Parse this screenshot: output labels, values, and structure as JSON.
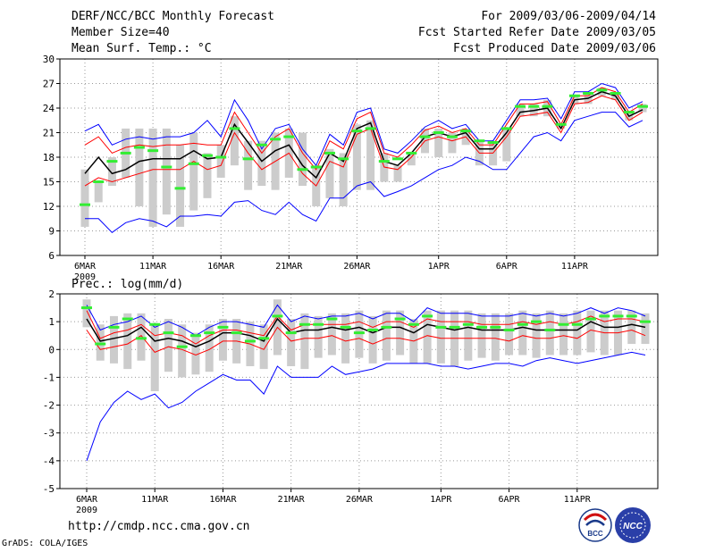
{
  "header": {
    "title": "DERF/NCC/BCC Monthly Forecast",
    "member_size": "Member Size=40",
    "variable": "Mean Surf. Temp.: °C",
    "period": "For 2009/03/06-2009/04/14",
    "refer_date": "Fcst Started Refer Date 2009/03/05",
    "produced_date": "Fcst Produced Date 2009/03/06"
  },
  "footer": {
    "url": "http://cmdp.ncc.cma.gov.cn",
    "credit": "GrADS: COLA/IGES"
  },
  "logos": {
    "bcc_text": "BCC",
    "ncc_text": "NCC"
  },
  "colors": {
    "envelope": "#0000ff",
    "spread": "#ff0000",
    "mean": "#000000",
    "median_marker": "#33ee33",
    "box": "#cccccc",
    "grid": "#999999"
  },
  "chart_data": [
    {
      "type": "line",
      "title": "Mean Surf. Temp.: °C",
      "x_tick_labels": [
        "6MAR",
        "11MAR",
        "16MAR",
        "21MAR",
        "26MAR",
        "1APR",
        "6APR",
        "11APR"
      ],
      "x_tick_days": [
        0,
        5,
        10,
        15,
        20,
        26,
        31,
        36
      ],
      "x_sublabel": "2009",
      "ylim": [
        6,
        30
      ],
      "yticks": [
        6,
        9,
        12,
        15,
        18,
        21,
        24,
        27,
        30
      ],
      "series": [
        {
          "name": "max",
          "values": [
            21.2,
            22.0,
            19.5,
            20.2,
            20.5,
            20.2,
            20.5,
            20.5,
            21.0,
            22.5,
            20.5,
            25.0,
            22.5,
            19.0,
            21.5,
            22.0,
            19.0,
            17.0,
            20.8,
            19.5,
            23.5,
            24.0,
            19.0,
            18.5,
            20.0,
            21.7,
            22.5,
            21.5,
            22.0,
            20.0,
            20.0,
            22.5,
            25.0,
            25.0,
            25.2,
            22.7,
            26.0,
            26.0,
            27.0,
            26.5,
            24.0,
            24.8
          ]
        },
        {
          "name": "upper_spread",
          "values": [
            19.5,
            20.5,
            18.5,
            19.2,
            19.5,
            19.3,
            19.5,
            19.5,
            19.7,
            19.5,
            19.5,
            23.5,
            21.0,
            18.5,
            20.5,
            21.5,
            18.5,
            16.5,
            20.0,
            19.0,
            22.7,
            23.5,
            18.5,
            18.0,
            19.5,
            21.3,
            21.8,
            21.0,
            21.5,
            19.5,
            19.5,
            22.0,
            24.5,
            24.5,
            24.8,
            22.0,
            25.5,
            25.5,
            26.5,
            26.0,
            23.5,
            24.5
          ]
        },
        {
          "name": "mean",
          "values": [
            16.0,
            18.0,
            16.0,
            16.5,
            17.5,
            17.8,
            17.8,
            17.8,
            18.8,
            17.8,
            18.0,
            22.0,
            19.8,
            17.5,
            18.8,
            19.5,
            17.0,
            15.5,
            18.5,
            17.5,
            21.5,
            22.2,
            17.5,
            17.0,
            18.5,
            20.5,
            21.0,
            20.5,
            21.0,
            19.0,
            19.0,
            21.0,
            23.5,
            23.7,
            24.0,
            21.5,
            25.0,
            25.2,
            26.0,
            25.5,
            23.0,
            23.8
          ]
        },
        {
          "name": "lower_spread",
          "values": [
            14.5,
            15.5,
            15.0,
            15.5,
            16.0,
            16.5,
            16.5,
            16.5,
            17.5,
            16.5,
            17.0,
            21.0,
            18.5,
            16.5,
            17.5,
            18.5,
            16.0,
            14.5,
            17.5,
            16.8,
            20.8,
            21.5,
            16.8,
            16.5,
            18.0,
            20.0,
            20.5,
            20.0,
            20.5,
            18.5,
            18.5,
            20.5,
            23.0,
            23.2,
            23.5,
            21.0,
            24.5,
            24.7,
            25.5,
            25.0,
            22.5,
            23.5
          ]
        },
        {
          "name": "min",
          "values": [
            10.5,
            10.5,
            8.8,
            10.0,
            10.5,
            10.2,
            9.5,
            10.8,
            10.8,
            11.0,
            10.8,
            12.5,
            12.7,
            11.5,
            11.0,
            12.5,
            11.0,
            10.2,
            13.0,
            13.0,
            14.5,
            15.0,
            13.2,
            13.8,
            14.5,
            15.5,
            16.5,
            17.0,
            18.0,
            17.5,
            16.5,
            16.5,
            18.5,
            20.5,
            21.0,
            20.0,
            22.5,
            23.0,
            23.5,
            23.5,
            21.7,
            22.5
          ]
        },
        {
          "name": "box_top",
          "values": [
            16.5,
            15.0,
            18.0,
            21.5,
            21.5,
            21.5,
            21.5,
            19.5,
            21.0,
            18.5,
            19.5,
            23.0,
            20.0,
            20.0,
            21.0,
            21.5,
            21.0,
            17.0,
            19.0,
            18.5,
            22.0,
            22.5,
            18.5,
            17.0,
            18.5,
            21.5,
            21.5,
            21.0,
            21.5,
            20.0,
            20.0,
            21.5,
            24.5,
            24.5,
            25.0,
            22.0,
            25.5,
            26.0,
            26.5,
            26.0,
            23.5,
            24.5
          ]
        },
        {
          "name": "box_bottom",
          "values": [
            9.5,
            12.5,
            14.5,
            15.5,
            12.0,
            9.5,
            11.0,
            9.5,
            11.5,
            13.0,
            15.5,
            17.0,
            14.0,
            14.5,
            14.0,
            15.5,
            14.5,
            12.0,
            13.0,
            12.0,
            14.0,
            14.0,
            15.0,
            15.0,
            17.0,
            18.5,
            18.0,
            18.5,
            19.5,
            17.0,
            17.0,
            17.5,
            23.0,
            23.0,
            23.0,
            21.5,
            24.5,
            24.5,
            25.5,
            25.0,
            22.5,
            23.5
          ]
        },
        {
          "name": "median",
          "values": [
            12.2,
            15.0,
            17.5,
            18.5,
            19.2,
            18.8,
            16.8,
            14.2,
            17.2,
            18.2,
            18.0,
            21.5,
            17.8,
            19.5,
            20.2,
            20.5,
            16.5,
            16.8,
            18.5,
            17.8,
            21.2,
            21.5,
            17.5,
            17.8,
            18.5,
            20.5,
            21.0,
            20.5,
            21.2,
            20.0,
            19.8,
            21.5,
            24.2,
            24.2,
            24.2,
            22.0,
            25.5,
            25.8,
            26.2,
            25.8,
            23.5,
            24.2
          ]
        }
      ]
    },
    {
      "type": "line",
      "title": "Prec.: log(mm/d)",
      "x_tick_labels": [
        "6MAR",
        "11MAR",
        "16MAR",
        "21MAR",
        "26MAR",
        "1APR",
        "6APR",
        "11APR"
      ],
      "x_tick_days": [
        0,
        5,
        10,
        15,
        20,
        26,
        31,
        36
      ],
      "x_sublabel": "2009",
      "ylim": [
        -5,
        2
      ],
      "yticks": [
        -5,
        -4,
        -3,
        -2,
        -1,
        0,
        1,
        2
      ],
      "series": [
        {
          "name": "max",
          "values": [
            1.6,
            0.7,
            0.9,
            1.0,
            1.2,
            0.8,
            1.0,
            0.8,
            0.5,
            0.8,
            1.0,
            1.0,
            0.9,
            0.8,
            1.6,
            1.0,
            1.2,
            1.1,
            1.2,
            1.2,
            1.3,
            1.1,
            1.3,
            1.3,
            1.0,
            1.5,
            1.3,
            1.3,
            1.3,
            1.2,
            1.2,
            1.2,
            1.3,
            1.2,
            1.3,
            1.2,
            1.3,
            1.5,
            1.3,
            1.5,
            1.4,
            1.2
          ]
        },
        {
          "name": "upper_spread",
          "values": [
            1.4,
            0.4,
            0.6,
            0.7,
            0.9,
            0.5,
            0.6,
            0.5,
            0.2,
            0.5,
            0.7,
            0.7,
            0.6,
            0.5,
            1.2,
            0.7,
            0.9,
            0.9,
            0.9,
            0.9,
            1.0,
            0.8,
            1.0,
            1.0,
            0.8,
            1.1,
            1.0,
            1.0,
            1.0,
            0.9,
            0.9,
            0.9,
            1.0,
            0.9,
            1.0,
            0.9,
            1.0,
            1.2,
            1.0,
            1.1,
            1.1,
            1.0
          ]
        },
        {
          "name": "mean",
          "values": [
            1.1,
            0.3,
            0.4,
            0.5,
            0.8,
            0.3,
            0.4,
            0.3,
            0.1,
            0.3,
            0.6,
            0.6,
            0.5,
            0.3,
            1.1,
            0.6,
            0.7,
            0.7,
            0.8,
            0.7,
            0.8,
            0.6,
            0.8,
            0.8,
            0.6,
            0.9,
            0.8,
            0.7,
            0.8,
            0.7,
            0.7,
            0.7,
            0.8,
            0.7,
            0.7,
            0.7,
            0.7,
            1.0,
            0.8,
            0.8,
            0.9,
            0.8
          ]
        },
        {
          "name": "lower_spread",
          "values": [
            0.7,
            0.0,
            0.1,
            0.2,
            0.5,
            -0.1,
            0.1,
            0.0,
            -0.2,
            0.0,
            0.3,
            0.3,
            0.2,
            0.0,
            0.8,
            0.3,
            0.4,
            0.4,
            0.5,
            0.3,
            0.4,
            0.2,
            0.4,
            0.4,
            0.3,
            0.5,
            0.4,
            0.4,
            0.4,
            0.4,
            0.4,
            0.3,
            0.5,
            0.4,
            0.4,
            0.5,
            0.4,
            0.7,
            0.6,
            0.6,
            0.7,
            0.5
          ]
        },
        {
          "name": "min",
          "values": [
            -4.0,
            -2.6,
            -1.9,
            -1.5,
            -1.8,
            -1.6,
            -2.1,
            -1.9,
            -1.5,
            -1.2,
            -0.9,
            -1.1,
            -1.1,
            -1.6,
            -0.6,
            -1.0,
            -1.0,
            -1.0,
            -0.6,
            -0.9,
            -0.8,
            -0.7,
            -0.5,
            -0.5,
            -0.5,
            -0.5,
            -0.6,
            -0.6,
            -0.7,
            -0.6,
            -0.5,
            -0.5,
            -0.6,
            -0.4,
            -0.3,
            -0.4,
            -0.5,
            -0.4,
            -0.3,
            -0.2,
            -0.1,
            -0.2
          ]
        },
        {
          "name": "box_top",
          "values": [
            1.8,
            0.9,
            1.2,
            1.3,
            1.3,
            0.9,
            1.1,
            0.9,
            0.6,
            0.9,
            1.1,
            1.1,
            1.0,
            0.9,
            1.8,
            1.1,
            1.3,
            1.2,
            1.3,
            1.3,
            1.4,
            1.2,
            1.4,
            1.4,
            1.1,
            1.4,
            1.4,
            1.4,
            1.4,
            1.3,
            1.3,
            1.3,
            1.4,
            1.3,
            1.4,
            1.3,
            1.4,
            1.4,
            1.4,
            1.4,
            1.4,
            1.3
          ]
        },
        {
          "name": "box_bottom",
          "values": [
            0.8,
            -0.4,
            -0.5,
            -0.7,
            -0.4,
            -1.5,
            -0.8,
            -1.0,
            -0.9,
            -0.8,
            -0.4,
            -0.5,
            -0.6,
            -0.7,
            -0.2,
            -0.6,
            -0.7,
            -0.3,
            -0.2,
            -0.5,
            -0.3,
            -0.5,
            -0.4,
            -0.2,
            -0.5,
            -0.5,
            -0.5,
            -0.6,
            -0.4,
            -0.3,
            -0.4,
            -0.2,
            -0.2,
            -0.3,
            -0.2,
            -0.2,
            -0.2,
            -0.1,
            -0.2,
            -0.2,
            0.2,
            0.2
          ]
        },
        {
          "name": "median",
          "values": [
            1.5,
            0.2,
            0.8,
            1.1,
            0.4,
            0.9,
            0.6,
            0.1,
            0.5,
            0.6,
            0.8,
            0.6,
            0.3,
            0.4,
            1.2,
            0.6,
            0.9,
            0.9,
            1.1,
            0.8,
            0.6,
            0.7,
            0.8,
            1.1,
            0.9,
            1.2,
            0.8,
            0.8,
            0.9,
            0.8,
            0.8,
            0.7,
            0.9,
            1.0,
            0.7,
            0.9,
            0.9,
            1.1,
            1.2,
            1.2,
            1.2,
            1.0
          ]
        }
      ]
    }
  ]
}
